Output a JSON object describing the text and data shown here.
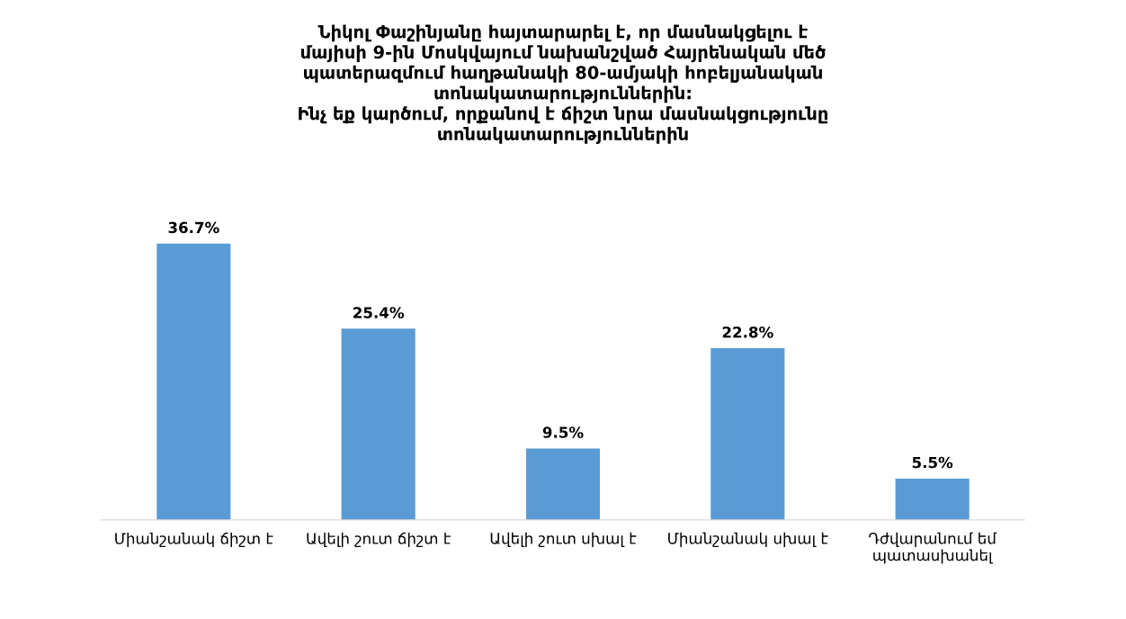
{
  "chart_data": {
    "type": "bar",
    "title": "Նիկոլ Փաշինյանը հայտարարել է, որ մասնակցելու է\nմայիսի 9-ին Մոսկվայում նախանշված Հայրենական մեծ\nպատերազմում հաղթանակի 80-ամյակի հոբելյանական\nտոնակատարություններին:\nԻնչ եք կարծում, որքանով է ճիշտ նրա մասնակցությունը\nտոնակատարություններին",
    "categories": [
      "Միանշանակ ճիշտ է",
      "Ավելի շուտ ճիշտ է",
      "Ավելի շուտ սխալ է",
      "Միանշանակ սխալ է",
      "Դժվարանում եմ\nպատասխանել"
    ],
    "values": [
      36.7,
      25.4,
      9.5,
      22.8,
      5.5
    ],
    "value_labels": [
      "36.7%",
      "25.4%",
      "9.5%",
      "22.8%",
      "5.5%"
    ],
    "color": "#5b9bd5",
    "grid": false,
    "legend": false
  }
}
